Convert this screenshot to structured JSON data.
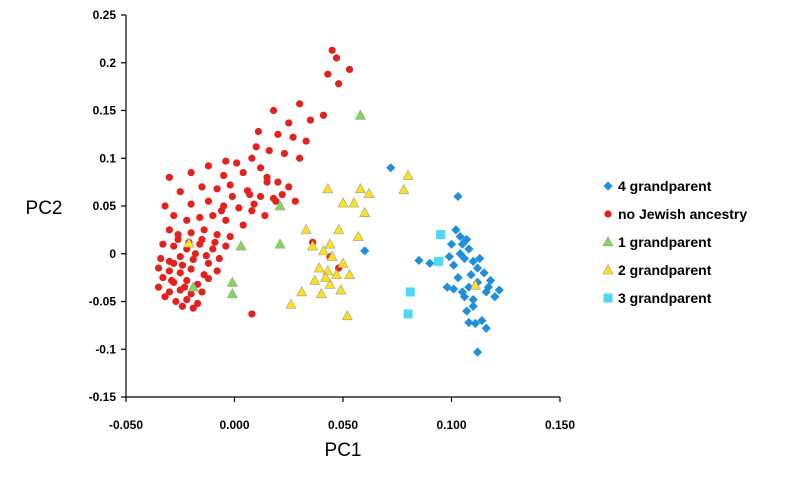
{
  "chart_data": {
    "type": "scatter",
    "title": "",
    "xlabel": "PC1",
    "ylabel": "PC2",
    "xlim": [
      -0.05,
      0.15
    ],
    "ylim": [
      -0.15,
      0.25
    ],
    "x_ticks": [
      "-0.050",
      "0.000",
      "0.050",
      "0.100",
      "0.150"
    ],
    "y_ticks": [
      "0.25",
      "0.2",
      "0.15",
      "0.1",
      "0.05",
      "0",
      "-0.05",
      "-0.1",
      "-0.15"
    ],
    "grid": false,
    "legend_position": "right",
    "series": [
      {
        "name": "4 grandparent",
        "marker": "diamond",
        "color": "#1f8fdc",
        "points": [
          [
            0.072,
            0.09
          ],
          [
            0.06,
            0.003
          ],
          [
            0.085,
            -0.007
          ],
          [
            0.09,
            -0.01
          ],
          [
            0.103,
            0.06
          ],
          [
            0.102,
            0.025
          ],
          [
            0.1,
            0.01
          ],
          [
            0.105,
            0.01
          ],
          [
            0.108,
            0.005
          ],
          [
            0.104,
            0.0
          ],
          [
            0.106,
            -0.005
          ],
          [
            0.11,
            -0.008
          ],
          [
            0.112,
            -0.015
          ],
          [
            0.115,
            -0.02
          ],
          [
            0.109,
            -0.022
          ],
          [
            0.103,
            -0.025
          ],
          [
            0.098,
            -0.035
          ],
          [
            0.101,
            -0.037
          ],
          [
            0.105,
            -0.04
          ],
          [
            0.108,
            -0.035
          ],
          [
            0.112,
            -0.03
          ],
          [
            0.116,
            -0.04
          ],
          [
            0.12,
            -0.045
          ],
          [
            0.118,
            -0.028
          ],
          [
            0.122,
            -0.038
          ],
          [
            0.11,
            -0.055
          ],
          [
            0.107,
            -0.06
          ],
          [
            0.111,
            -0.073
          ],
          [
            0.114,
            -0.07
          ],
          [
            0.116,
            -0.078
          ],
          [
            0.108,
            -0.072
          ],
          [
            0.112,
            -0.103
          ],
          [
            0.104,
            0.018
          ],
          [
            0.107,
            0.015
          ],
          [
            0.101,
            -0.012
          ],
          [
            0.099,
            -0.003
          ],
          [
            0.113,
            -0.005
          ],
          [
            0.117,
            -0.035
          ],
          [
            0.106,
            -0.045
          ],
          [
            0.11,
            -0.048
          ]
        ]
      },
      {
        "name": "no Jewish ancestry",
        "marker": "circle",
        "color": "#e3211f",
        "points": [
          [
            0.045,
            0.213
          ],
          [
            0.047,
            0.205
          ],
          [
            0.053,
            0.193
          ],
          [
            0.043,
            0.188
          ],
          [
            0.048,
            0.178
          ],
          [
            0.03,
            0.157
          ],
          [
            0.018,
            0.15
          ],
          [
            0.025,
            0.137
          ],
          [
            0.035,
            0.14
          ],
          [
            0.041,
            0.145
          ],
          [
            0.011,
            0.128
          ],
          [
            0.02,
            0.125
          ],
          [
            0.027,
            0.122
          ],
          [
            0.033,
            0.118
          ],
          [
            0.01,
            0.112
          ],
          [
            0.016,
            0.108
          ],
          [
            0.023,
            0.105
          ],
          [
            0.03,
            0.1
          ],
          [
            -0.004,
            0.097
          ],
          [
            0.001,
            0.095
          ],
          [
            0.008,
            0.1
          ],
          [
            0.012,
            0.09
          ],
          [
            -0.012,
            0.092
          ],
          [
            -0.02,
            0.085
          ],
          [
            -0.03,
            0.08
          ],
          [
            -0.005,
            0.082
          ],
          [
            0.004,
            0.085
          ],
          [
            0.015,
            0.08
          ],
          [
            0.02,
            0.075
          ],
          [
            0.025,
            0.07
          ],
          [
            -0.025,
            0.065
          ],
          [
            -0.015,
            0.07
          ],
          [
            -0.008,
            0.068
          ],
          [
            -0.002,
            0.072
          ],
          [
            0.006,
            0.066
          ],
          [
            0.012,
            0.06
          ],
          [
            0.018,
            0.058
          ],
          [
            0.022,
            0.062
          ],
          [
            0.028,
            0.055
          ],
          [
            -0.032,
            0.05
          ],
          [
            -0.02,
            0.052
          ],
          [
            -0.012,
            0.055
          ],
          [
            -0.005,
            0.05
          ],
          [
            0.002,
            0.048
          ],
          [
            0.008,
            0.045
          ],
          [
            0.014,
            0.04
          ],
          [
            -0.028,
            0.04
          ],
          [
            -0.022,
            0.035
          ],
          [
            -0.016,
            0.038
          ],
          [
            -0.01,
            0.04
          ],
          [
            -0.004,
            0.035
          ],
          [
            0.004,
            0.03
          ],
          [
            -0.03,
            0.025
          ],
          [
            -0.026,
            0.02
          ],
          [
            -0.02,
            0.022
          ],
          [
            -0.014,
            0.025
          ],
          [
            -0.008,
            0.02
          ],
          [
            -0.002,
            0.018
          ],
          [
            -0.033,
            0.01
          ],
          [
            -0.028,
            0.008
          ],
          [
            -0.022,
            0.005
          ],
          [
            -0.016,
            0.01
          ],
          [
            -0.01,
            0.005
          ],
          [
            -0.004,
            0.008
          ],
          [
            -0.034,
            -0.005
          ],
          [
            -0.03,
            -0.008
          ],
          [
            -0.025,
            -0.003
          ],
          [
            -0.019,
            -0.006
          ],
          [
            -0.013,
            -0.002
          ],
          [
            -0.007,
            -0.005
          ],
          [
            -0.035,
            -0.015
          ],
          [
            -0.03,
            -0.018
          ],
          [
            -0.025,
            -0.02
          ],
          [
            -0.02,
            -0.016
          ],
          [
            -0.014,
            -0.022
          ],
          [
            -0.008,
            -0.018
          ],
          [
            -0.033,
            -0.025
          ],
          [
            -0.028,
            -0.03
          ],
          [
            -0.022,
            -0.028
          ],
          [
            -0.017,
            -0.032
          ],
          [
            -0.012,
            -0.026
          ],
          [
            -0.035,
            -0.035
          ],
          [
            -0.03,
            -0.04
          ],
          [
            -0.025,
            -0.038
          ],
          [
            -0.02,
            -0.042
          ],
          [
            -0.015,
            -0.04
          ],
          [
            -0.032,
            -0.045
          ],
          [
            -0.027,
            -0.05
          ],
          [
            -0.022,
            -0.048
          ],
          [
            -0.017,
            -0.052
          ],
          [
            -0.024,
            -0.055
          ],
          [
            -0.019,
            -0.057
          ],
          [
            -0.028,
            -0.01
          ],
          [
            -0.024,
            -0.012
          ],
          [
            -0.018,
            0.0
          ],
          [
            -0.012,
            -0.01
          ],
          [
            -0.026,
            0.015
          ],
          [
            -0.021,
            0.012
          ],
          [
            -0.015,
            0.015
          ],
          [
            -0.009,
            0.012
          ],
          [
            -0.029,
            -0.028
          ],
          [
            -0.023,
            -0.035
          ],
          [
            0.007,
            0.062
          ],
          [
            0.015,
            0.075
          ],
          [
            0.019,
            0.055
          ],
          [
            0.009,
            0.052
          ],
          [
            -0.001,
            0.06
          ],
          [
            -0.006,
            0.045
          ],
          [
            0.008,
            -0.063
          ],
          [
            0.036,
            0.012
          ],
          [
            0.044,
            -0.003
          ],
          [
            0.048,
            -0.015
          ]
        ]
      },
      {
        "name": "1 grandparent",
        "marker": "triangle",
        "color": "#7ed957",
        "points": [
          [
            0.058,
            0.145
          ],
          [
            0.021,
            0.05
          ],
          [
            0.021,
            0.01
          ],
          [
            0.003,
            0.008
          ],
          [
            -0.001,
            -0.03
          ],
          [
            -0.001,
            -0.042
          ],
          [
            -0.019,
            -0.035
          ]
        ]
      },
      {
        "name": "2 grandparent",
        "marker": "triangle",
        "color": "#ffe11a",
        "points": [
          [
            0.043,
            0.068
          ],
          [
            0.058,
            0.068
          ],
          [
            0.062,
            0.063
          ],
          [
            0.078,
            0.067
          ],
          [
            0.08,
            0.082
          ],
          [
            0.05,
            0.053
          ],
          [
            0.055,
            0.053
          ],
          [
            0.06,
            0.043
          ],
          [
            0.033,
            0.025
          ],
          [
            0.048,
            0.025
          ],
          [
            0.057,
            0.018
          ],
          [
            0.036,
            0.008
          ],
          [
            0.044,
            0.01
          ],
          [
            0.041,
            0.003
          ],
          [
            0.045,
            -0.003
          ],
          [
            0.05,
            -0.01
          ],
          [
            0.039,
            -0.015
          ],
          [
            0.043,
            -0.018
          ],
          [
            0.047,
            -0.022
          ],
          [
            0.053,
            -0.022
          ],
          [
            0.037,
            -0.028
          ],
          [
            0.044,
            -0.032
          ],
          [
            0.049,
            -0.038
          ],
          [
            0.026,
            -0.053
          ],
          [
            0.04,
            -0.042
          ],
          [
            0.052,
            -0.065
          ],
          [
            0.031,
            -0.04
          ],
          [
            -0.021,
            0.011
          ],
          [
            0.111,
            -0.033
          ],
          [
            0.042,
            -0.025
          ]
        ]
      },
      {
        "name": "3 grandparent",
        "marker": "square",
        "color": "#4fd7f3",
        "points": [
          [
            0.095,
            0.02
          ],
          [
            0.094,
            -0.008
          ],
          [
            0.081,
            -0.04
          ],
          [
            0.08,
            -0.063
          ]
        ]
      }
    ]
  }
}
